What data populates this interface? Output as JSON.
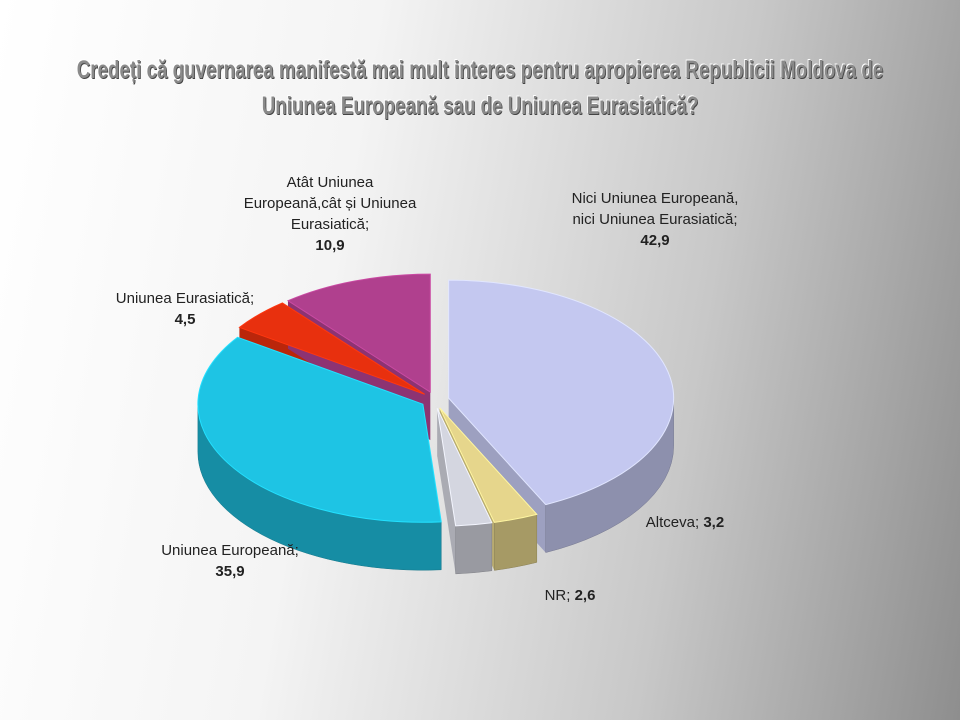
{
  "chart_data": {
    "type": "pie",
    "title": "Credeți că guvernarea manifestă mai mult interes pentru apropierea Republicii Moldova de Uniunea Europeană sau de Uniunea Eurasiatică?",
    "categories": [
      "Nici Uniunea Europeană, nici Uniunea Eurasiatică;",
      "Altceva;",
      "NR;",
      "Uniunea Europeană;",
      "Uniunea Eurasiatică;",
      "Atât Uniunea Europeană,cât și Uniunea Eurasiatică;"
    ],
    "values": [
      42.9,
      3.2,
      2.6,
      35.9,
      4.5,
      10.9
    ],
    "value_labels": [
      "42,9",
      "3,2",
      "2,6",
      "35,9",
      "4,5",
      "10,9"
    ],
    "colors": [
      "#c4c8f0",
      "#e6d68c",
      "#d4d6e0",
      "#1ec4e4",
      "#e8300e",
      "#b0408e"
    ]
  }
}
